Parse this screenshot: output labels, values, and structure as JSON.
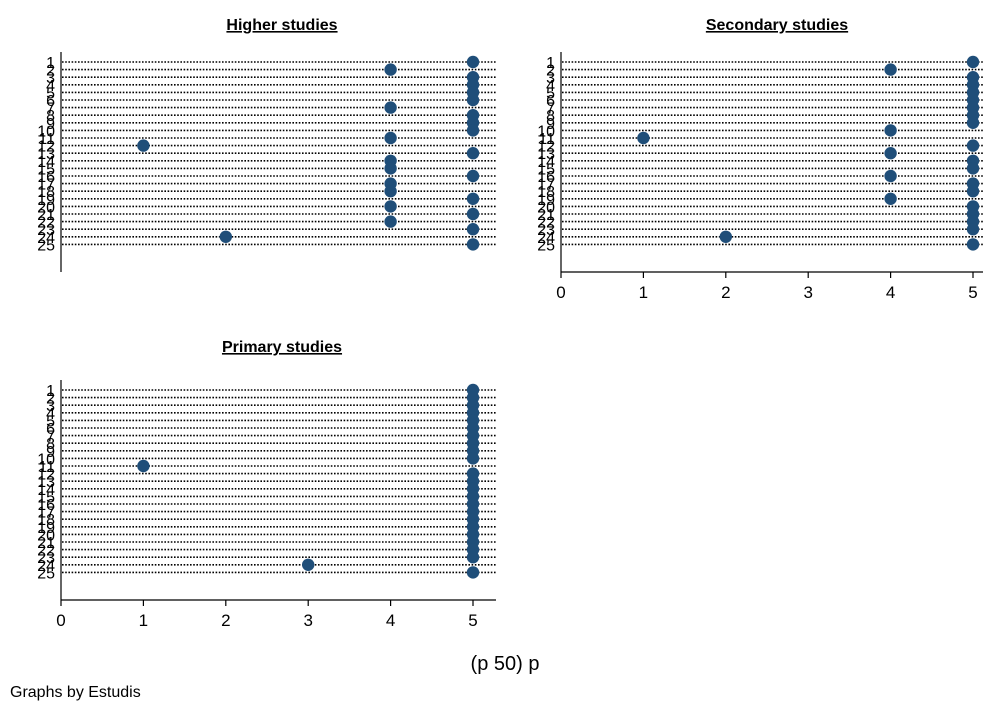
{
  "chart_data": {
    "type": "scatter",
    "subtype": "dot-plot",
    "xlabel": "(p 50) p",
    "note": "Graphs by Estudis",
    "xticks": [
      0,
      1,
      2,
      3,
      4,
      5
    ],
    "xlim": [
      0,
      5.25
    ],
    "categories": [
      "1",
      "2",
      "3",
      "4",
      "5",
      "6",
      "7",
      "8",
      "9",
      "10",
      "11",
      "12",
      "13",
      "14",
      "15",
      "16",
      "17",
      "18",
      "19",
      "20",
      "21",
      "22",
      "23",
      "24",
      "25"
    ],
    "marker_color": "#1f4e79",
    "panels": [
      {
        "title": "Higher studies",
        "show_x_axis": false,
        "values": [
          5,
          4,
          5,
          5,
          5,
          5,
          4,
          5,
          5,
          5,
          4,
          1,
          5,
          4,
          4,
          5,
          4,
          4,
          5,
          4,
          5,
          4,
          5,
          2,
          5
        ]
      },
      {
        "title": "Secondary studies",
        "show_x_axis": true,
        "values": [
          5,
          4,
          5,
          5,
          5,
          5,
          5,
          5,
          5,
          4,
          1,
          5,
          4,
          5,
          5,
          4,
          5,
          5,
          4,
          5,
          5,
          5,
          5,
          2,
          5
        ]
      },
      {
        "title": "Primary studies",
        "show_x_axis": true,
        "values": [
          5,
          5,
          5,
          5,
          5,
          5,
          5,
          5,
          5,
          5,
          1,
          5,
          5,
          5,
          5,
          5,
          5,
          5,
          5,
          5,
          5,
          5,
          5,
          3,
          5
        ]
      }
    ]
  }
}
